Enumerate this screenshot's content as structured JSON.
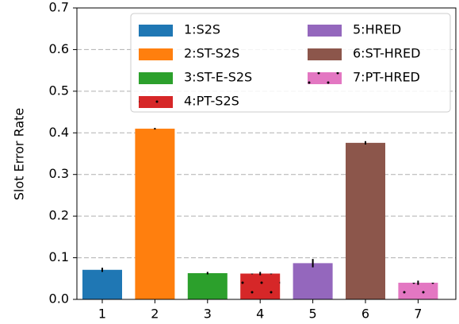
{
  "chart_data": {
    "type": "bar",
    "ylabel": "Slot Error Rate",
    "categories": [
      "1",
      "2",
      "3",
      "4",
      "5",
      "6",
      "7"
    ],
    "values": [
      0.071,
      0.41,
      0.063,
      0.062,
      0.087,
      0.376,
      0.04
    ],
    "errors": [
      0.005,
      0.002,
      0.003,
      0.004,
      0.01,
      0.004,
      0.005
    ],
    "colors": [
      "#1f77b4",
      "#ff7f0e",
      "#2ca02c",
      "#d62728",
      "#9467bd",
      "#8c564b",
      "#e377c2"
    ],
    "hatched": [
      false,
      false,
      false,
      true,
      false,
      false,
      true
    ],
    "legend": [
      "1:S2S",
      "2:ST-S2S",
      "3:ST-E-S2S",
      "4:PT-S2S",
      "5:HRED",
      "6:ST-HRED",
      "7:PT-HRED"
    ],
    "ylim": [
      0,
      0.7
    ],
    "yticks": [
      {
        "value": 0,
        "label": "0.0"
      },
      0.1,
      0.2,
      0.3,
      0.4,
      0.5,
      0.6,
      0.7
    ],
    "grid": true
  }
}
